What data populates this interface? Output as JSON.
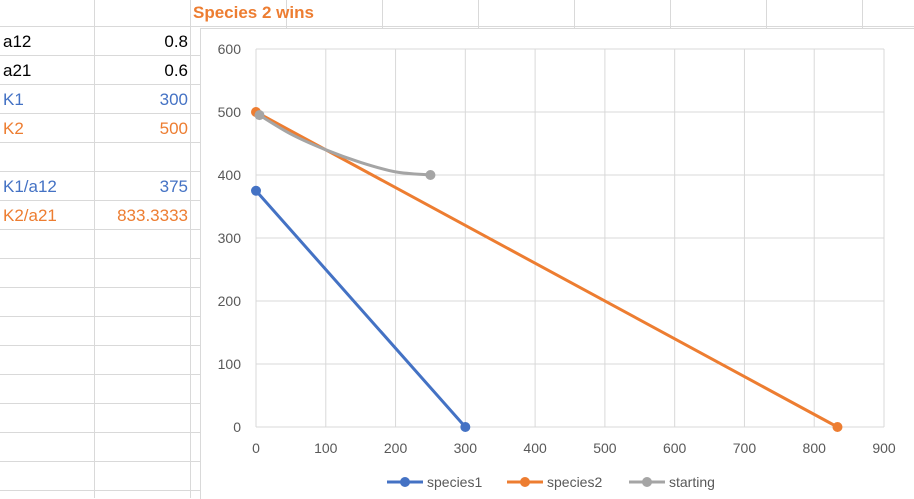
{
  "sheet": {
    "title": "Species 2 wins",
    "rows": [
      {
        "label": "a12",
        "value": "0.8",
        "color": "#000000"
      },
      {
        "label": "a21",
        "value": "0.6",
        "color": "#000000"
      },
      {
        "label": "K1",
        "value": "300",
        "color": "#4472c4"
      },
      {
        "label": "K2",
        "value": "500",
        "color": "#ed7d31"
      },
      {
        "label": "",
        "value": "",
        "color": "#000000"
      },
      {
        "label": "K1/a12",
        "value": "375",
        "color": "#4472c4"
      },
      {
        "label": "K2/a21",
        "value": "833.3333",
        "color": "#ed7d31"
      }
    ]
  },
  "chart_data": {
    "type": "scatter",
    "title": "",
    "xlabel": "",
    "ylabel": "",
    "xlim": [
      0,
      900
    ],
    "ylim": [
      0,
      600
    ],
    "xticks": [
      0,
      100,
      200,
      300,
      400,
      500,
      600,
      700,
      800,
      900
    ],
    "yticks": [
      0,
      100,
      200,
      300,
      400,
      500,
      600
    ],
    "grid": true,
    "legend": "bottom",
    "series": [
      {
        "name": "species1",
        "color": "#4472c4",
        "smooth": false,
        "points": [
          [
            0,
            375
          ],
          [
            300,
            0
          ]
        ]
      },
      {
        "name": "species2",
        "color": "#ed7d31",
        "smooth": false,
        "points": [
          [
            0,
            500
          ],
          [
            833.3333,
            0
          ]
        ]
      },
      {
        "name": "starting",
        "color": "#a5a5a5",
        "smooth": true,
        "points": [
          [
            250,
            400
          ],
          [
            200,
            405
          ],
          [
            150,
            420
          ],
          [
            100,
            440
          ],
          [
            50,
            465
          ],
          [
            5,
            495
          ]
        ]
      }
    ]
  }
}
